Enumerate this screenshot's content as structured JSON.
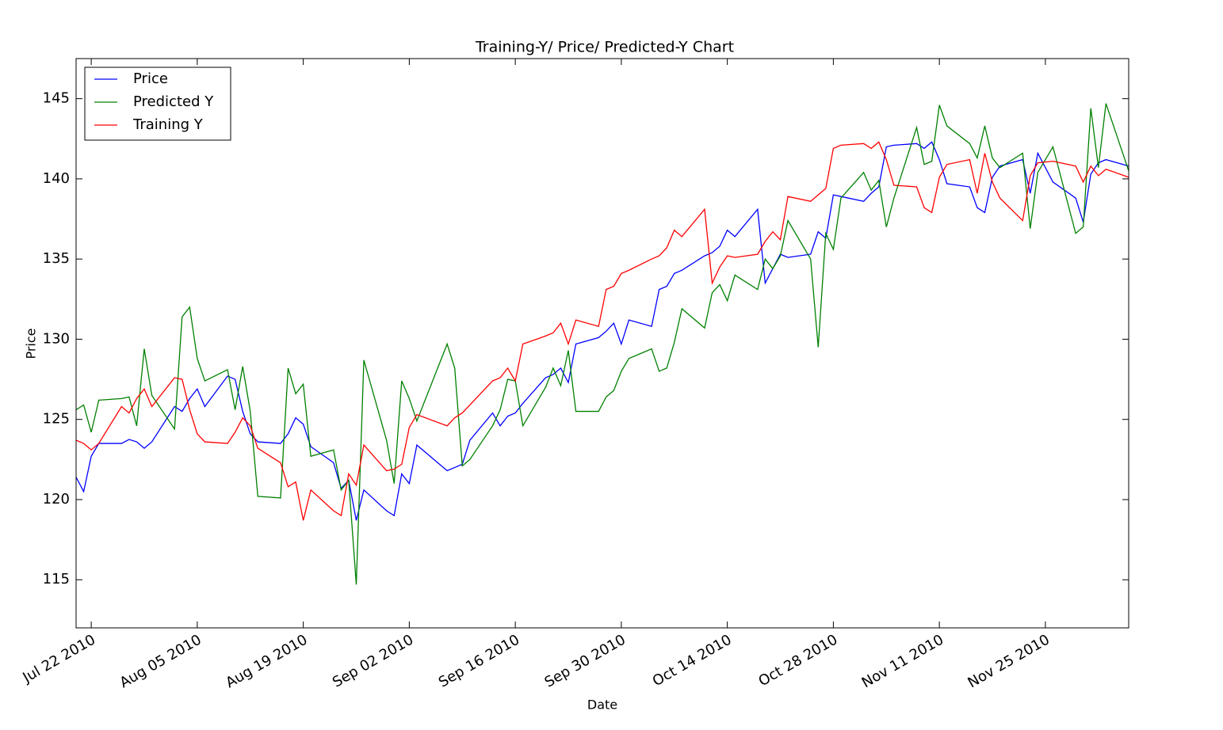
{
  "chart_data": {
    "type": "line",
    "title": "Training-Y/ Price/ Predicted-Y Chart",
    "xlabel": "Date",
    "ylabel": "Price",
    "x": [
      "2010-07-20",
      "2010-07-21",
      "2010-07-22",
      "2010-07-23",
      "2010-07-26",
      "2010-07-27",
      "2010-07-28",
      "2010-07-29",
      "2010-07-30",
      "2010-08-02",
      "2010-08-03",
      "2010-08-04",
      "2010-08-05",
      "2010-08-06",
      "2010-08-09",
      "2010-08-10",
      "2010-08-11",
      "2010-08-12",
      "2010-08-13",
      "2010-08-16",
      "2010-08-17",
      "2010-08-18",
      "2010-08-19",
      "2010-08-20",
      "2010-08-23",
      "2010-08-24",
      "2010-08-25",
      "2010-08-26",
      "2010-08-27",
      "2010-08-30",
      "2010-08-31",
      "2010-09-01",
      "2010-09-02",
      "2010-09-03",
      "2010-09-07",
      "2010-09-08",
      "2010-09-09",
      "2010-09-10",
      "2010-09-13",
      "2010-09-14",
      "2010-09-15",
      "2010-09-16",
      "2010-09-17",
      "2010-09-20",
      "2010-09-21",
      "2010-09-22",
      "2010-09-23",
      "2010-09-24",
      "2010-09-27",
      "2010-09-28",
      "2010-09-29",
      "2010-09-30",
      "2010-10-01",
      "2010-10-04",
      "2010-10-05",
      "2010-10-06",
      "2010-10-07",
      "2010-10-08",
      "2010-10-11",
      "2010-10-12",
      "2010-10-13",
      "2010-10-14",
      "2010-10-15",
      "2010-10-18",
      "2010-10-19",
      "2010-10-20",
      "2010-10-21",
      "2010-10-22",
      "2010-10-25",
      "2010-10-26",
      "2010-10-27",
      "2010-10-28",
      "2010-10-29",
      "2010-11-01",
      "2010-11-02",
      "2010-11-03",
      "2010-11-04",
      "2010-11-05",
      "2010-11-08",
      "2010-11-09",
      "2010-11-10",
      "2010-11-11",
      "2010-11-12",
      "2010-11-15",
      "2010-11-16",
      "2010-11-17",
      "2010-11-18",
      "2010-11-19",
      "2010-11-22",
      "2010-11-23",
      "2010-11-24",
      "2010-11-26",
      "2010-11-29",
      "2010-11-30",
      "2010-12-01",
      "2010-12-02",
      "2010-12-03",
      "2010-12-06"
    ],
    "series": [
      {
        "name": "Price",
        "color": "#0000ff",
        "values": [
          121.4,
          120.5,
          122.7,
          123.5,
          123.5,
          123.75,
          123.6,
          123.2,
          123.6,
          125.8,
          125.5,
          126.3,
          126.9,
          125.8,
          127.7,
          127.5,
          125.5,
          124.1,
          123.6,
          123.5,
          124.1,
          125.1,
          124.7,
          123.3,
          122.3,
          120.7,
          121.2,
          118.7,
          120.6,
          119.3,
          119.0,
          121.6,
          121.0,
          123.4,
          121.8,
          122.0,
          122.2,
          123.7,
          125.4,
          124.6,
          125.2,
          125.4,
          126.0,
          127.6,
          127.8,
          128.2,
          127.3,
          129.7,
          130.1,
          130.5,
          131.0,
          129.7,
          131.2,
          130.8,
          133.1,
          133.3,
          134.1,
          134.3,
          135.2,
          135.4,
          135.8,
          136.8,
          136.4,
          138.1,
          133.5,
          134.4,
          135.3,
          135.1,
          135.3,
          136.7,
          136.3,
          139.0,
          138.9,
          138.6,
          139.1,
          139.5,
          142.0,
          142.1,
          142.2,
          141.9,
          142.3,
          141.2,
          139.7,
          139.5,
          138.2,
          137.9,
          140.1,
          140.8,
          141.2,
          139.1,
          141.6,
          139.8,
          138.8,
          137.3,
          140.3,
          141.0,
          141.2,
          140.8
        ]
      },
      {
        "name": "Predicted Y",
        "color": "#008000",
        "values": [
          125.6,
          125.9,
          124.2,
          126.2,
          126.3,
          126.4,
          124.6,
          129.4,
          126.5,
          124.4,
          131.4,
          132.0,
          128.8,
          127.4,
          128.1,
          125.6,
          128.3,
          125.5,
          120.2,
          120.1,
          128.2,
          126.6,
          127.2,
          122.7,
          123.1,
          120.6,
          121.2,
          114.7,
          128.7,
          123.7,
          121.0,
          127.4,
          126.3,
          124.9,
          129.7,
          128.2,
          122.1,
          122.5,
          124.6,
          125.6,
          127.5,
          127.4,
          124.6,
          127.0,
          128.2,
          127.1,
          129.3,
          125.5,
          125.5,
          126.4,
          126.8,
          128.0,
          128.8,
          129.4,
          128.0,
          128.2,
          129.8,
          131.9,
          130.7,
          132.9,
          133.4,
          132.4,
          134.0,
          133.1,
          135.0,
          134.4,
          135.2,
          137.4,
          135.0,
          129.5,
          136.6,
          135.6,
          138.8,
          140.4,
          139.3,
          139.9,
          137.0,
          138.8,
          143.2,
          140.9,
          141.1,
          144.6,
          143.3,
          142.2,
          141.3,
          143.3,
          141.3,
          140.7,
          141.6,
          136.9,
          140.4,
          142.0,
          136.6,
          137.0,
          144.4,
          140.7,
          144.7,
          140.5
        ]
      },
      {
        "name": "Training Y",
        "color": "#ff0000",
        "values": [
          123.7,
          123.5,
          123.1,
          123.5,
          125.8,
          125.4,
          126.3,
          126.9,
          125.8,
          127.6,
          127.5,
          125.6,
          124.1,
          123.6,
          123.5,
          124.2,
          125.1,
          124.6,
          123.2,
          122.3,
          120.8,
          121.1,
          118.7,
          120.6,
          119.3,
          119.0,
          121.6,
          120.9,
          123.4,
          121.8,
          121.9,
          122.2,
          124.5,
          125.3,
          124.6,
          125.1,
          125.4,
          125.9,
          127.4,
          127.6,
          128.2,
          127.4,
          129.7,
          130.2,
          130.4,
          131.0,
          129.7,
          131.2,
          130.8,
          133.1,
          133.3,
          134.1,
          134.3,
          135.0,
          135.2,
          135.7,
          136.8,
          136.4,
          138.1,
          133.5,
          134.5,
          135.2,
          135.1,
          135.3,
          136.1,
          136.7,
          136.2,
          138.9,
          138.6,
          139.0,
          139.4,
          141.9,
          142.1,
          142.2,
          141.9,
          142.3,
          141.2,
          139.6,
          139.5,
          138.2,
          137.9,
          140.1,
          140.9,
          141.2,
          139.1,
          141.6,
          139.8,
          138.8,
          137.4,
          140.2,
          141.0,
          141.1,
          140.8,
          139.8,
          140.8,
          140.2,
          140.6,
          140.1
        ]
      }
    ],
    "xlim": [
      "2010-07-20",
      "2010-12-06"
    ],
    "xticks": [
      {
        "value": "2010-07-22",
        "label": "Jul 22 2010"
      },
      {
        "value": "2010-08-05",
        "label": "Aug 05 2010"
      },
      {
        "value": "2010-08-19",
        "label": "Aug 19 2010"
      },
      {
        "value": "2010-09-02",
        "label": "Sep 02 2010"
      },
      {
        "value": "2010-09-16",
        "label": "Sep 16 2010"
      },
      {
        "value": "2010-09-30",
        "label": "Sep 30 2010"
      },
      {
        "value": "2010-10-14",
        "label": "Oct 14 2010"
      },
      {
        "value": "2010-10-28",
        "label": "Oct 28 2010"
      },
      {
        "value": "2010-11-11",
        "label": "Nov 11 2010"
      },
      {
        "value": "2010-11-25",
        "label": "Nov 25 2010"
      }
    ],
    "ylim": [
      112,
      147.5
    ],
    "yticks": [
      115,
      120,
      125,
      130,
      135,
      140,
      145
    ],
    "grid": false,
    "legend": "upper left"
  }
}
